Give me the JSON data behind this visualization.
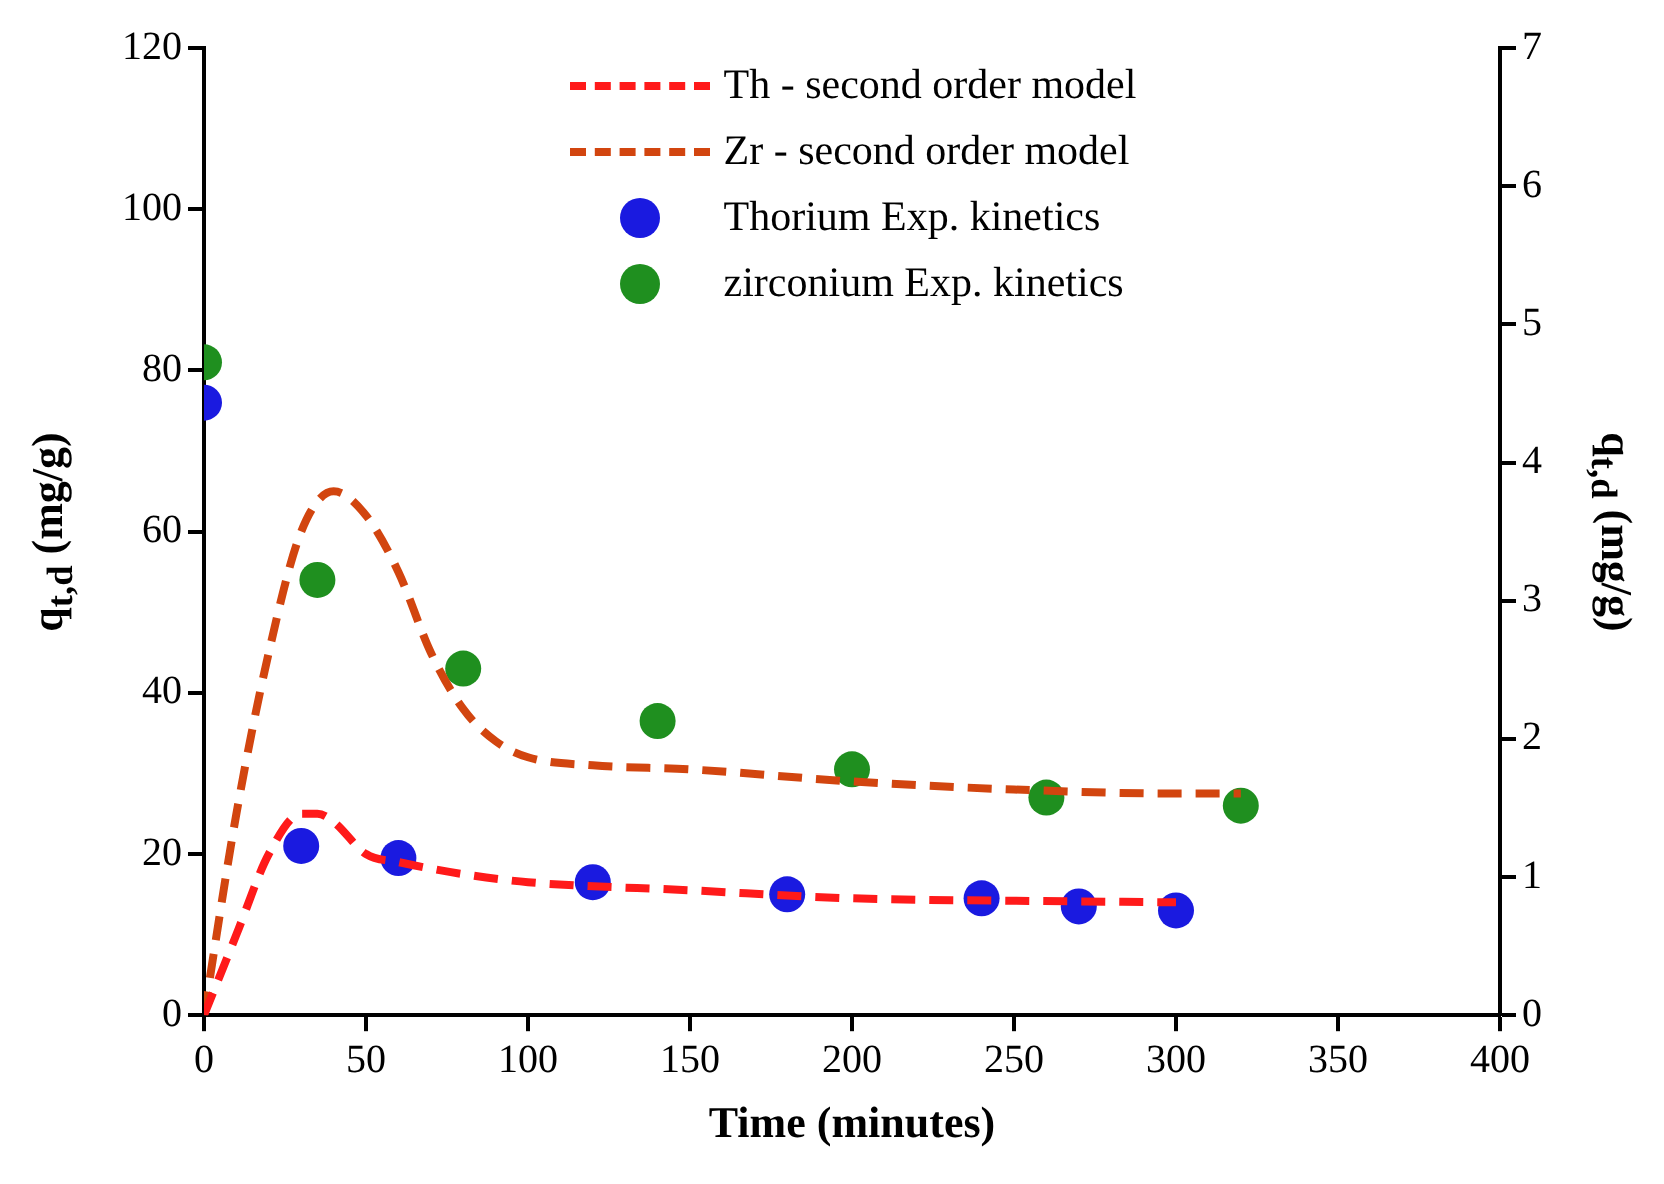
{
  "chart_data": {
    "type": "scatter",
    "xlabel": "Time (minutes)",
    "ylabel": "q$_{t,d}$ (mg/g)",
    "y2label": "q$_{t,d}$ (mg/g)",
    "xlim": [
      0,
      400
    ],
    "xticks": [
      0,
      50,
      100,
      150,
      200,
      250,
      300,
      350,
      400
    ],
    "ylim": [
      0,
      120
    ],
    "yticks": [
      0,
      20,
      40,
      60,
      80,
      100,
      120
    ],
    "y2lim": [
      0,
      7
    ],
    "y2ticks": [
      0,
      1,
      2,
      3,
      4,
      5,
      6,
      7
    ],
    "grid": false,
    "legend": "top",
    "line_style": "dashed",
    "series": [
      {
        "name": "Th - second order model",
        "type": "line",
        "marker": "none",
        "color": "#ff1a1a",
        "x": [
          0,
          10,
          20,
          30,
          35,
          40,
          50,
          60,
          80,
          100,
          150,
          200,
          250,
          300
        ],
        "values": [
          0,
          10,
          20,
          25,
          25,
          24,
          20,
          19,
          17.5,
          16.5,
          15.5,
          14.5,
          14.2,
          14
        ]
      },
      {
        "name": "Zr - second order model",
        "type": "line",
        "marker": "none",
        "color": "#d2450f",
        "x": [
          0,
          10,
          20,
          30,
          40,
          50,
          60,
          70,
          80,
          90,
          100,
          120,
          150,
          200,
          250,
          300,
          320
        ],
        "values": [
          0,
          25,
          45,
          60,
          65,
          62,
          55,
          45,
          38,
          34,
          32,
          31,
          30.5,
          29,
          28,
          27.5,
          27.5
        ]
      },
      {
        "name": "Thorium Exp. kinetics",
        "marker": "circle",
        "color": "#1a1ae0",
        "x": [
          0,
          30,
          60,
          120,
          180,
          240,
          270,
          300
        ],
        "values": [
          76,
          21,
          19.5,
          16.5,
          15,
          14.5,
          13.5,
          13
        ]
      },
      {
        "name": "zirconium Exp. kinetics",
        "marker": "circle",
        "color": "#1f8f1f",
        "x": [
          0,
          35,
          80,
          140,
          200,
          260,
          320
        ],
        "values": [
          81,
          54,
          43,
          36.5,
          30.5,
          27,
          26
        ]
      }
    ]
  }
}
